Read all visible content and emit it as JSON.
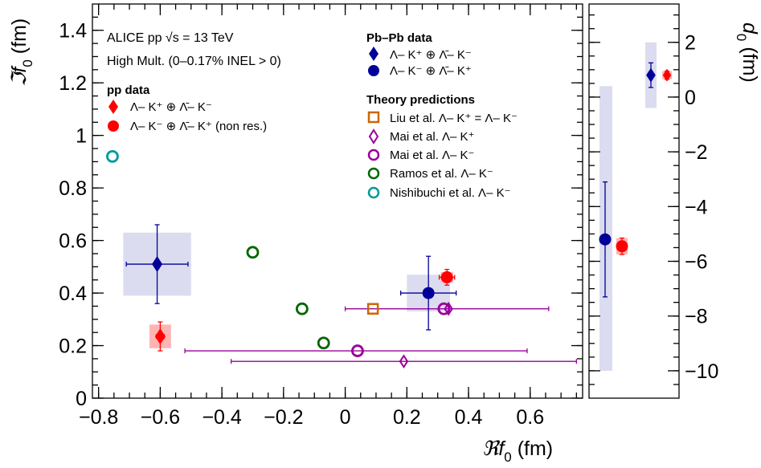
{
  "chart_data": [
    {
      "type": "scatter",
      "panel": "left",
      "xlabel": "ℜf0 (fm)",
      "ylabel": "ℑf0 (fm)",
      "xlim": [
        -0.82,
        0.77
      ],
      "ylim": [
        0,
        1.5
      ],
      "xticks": [
        -0.8,
        -0.6,
        -0.4,
        -0.2,
        0,
        0.2,
        0.4,
        0.6
      ],
      "xtick_labels": [
        "−0.8",
        "−0.6",
        "−0.4",
        "−0.2",
        "0",
        "0.2",
        "0.4",
        "0.6"
      ],
      "yticks": [
        0,
        0.2,
        0.4,
        0.6,
        0.8,
        1,
        1.2,
        1.4
      ],
      "ytick_labels": [
        "0",
        "0.2",
        "0.4",
        "0.6",
        "0.8",
        "1",
        "1.2",
        "1.4"
      ],
      "annotations": [
        "ALICE pp √s = 13 TeV",
        "High Mult. (0–0.17% INEL > 0)",
        "pp data",
        "Pb–Pb data",
        "Theory predictions"
      ],
      "series": [
        {
          "name": "Λ– K⁺ ⊕ Λ̄– K⁻ (pp)",
          "marker": "diamond-filled",
          "color": "#ff0000",
          "x": -0.6,
          "y": 0.235,
          "xerr": 0.013,
          "yerr": 0.055,
          "sys_x": 0.035,
          "sys_y": 0.045
        },
        {
          "name": "Λ– K⁻ ⊕ Λ̄– K⁺ (non res.) (pp)",
          "marker": "circle-filled",
          "color": "#ff0000",
          "x": 0.33,
          "y": 0.46,
          "xerr": 0.025,
          "yerr": 0.03,
          "sys_x": 0.02,
          "sys_y": 0.02
        },
        {
          "name": "Λ– K⁺ ⊕ Λ̄– K⁻ (Pb–Pb)",
          "marker": "diamond-filled",
          "color": "#000099",
          "x": -0.61,
          "y": 0.51,
          "xerr": 0.1,
          "yerr": 0.15,
          "sys_x": 0.11,
          "sys_y": 0.12
        },
        {
          "name": "Λ– K⁻ ⊕ Λ̄– K⁺ (Pb–Pb)",
          "marker": "circle-filled",
          "color": "#000099",
          "x": 0.27,
          "y": 0.4,
          "xerr": 0.09,
          "yerr": 0.14,
          "sys_x": 0.07,
          "sys_y": 0.07
        },
        {
          "name": "Liu et al. Λ– K⁺ = Λ– K⁻",
          "marker": "square-open",
          "color": "#cc6600",
          "x": 0.09,
          "y": 0.34
        },
        {
          "name": "Mai et al. Λ– K⁺",
          "marker": "diamond-open",
          "color": "#990099",
          "points": [
            {
              "x": 0.335,
              "y": 0.34,
              "xlo": -0.0,
              "xhi": 0.66
            },
            {
              "x": 0.19,
              "y": 0.14,
              "xlo": -0.37,
              "xhi": 0.75
            }
          ]
        },
        {
          "name": "Mai et al. Λ– K⁻",
          "marker": "circle-open",
          "color": "#990099",
          "points": [
            {
              "x": 0.32,
              "y": 0.34
            },
            {
              "x": 0.04,
              "y": 0.18,
              "xlo": -0.52,
              "xhi": 0.59
            }
          ]
        },
        {
          "name": "Ramos et al. Λ– K⁻",
          "marker": "circle-open",
          "color": "#006600",
          "points": [
            {
              "x": -0.3,
              "y": 0.555
            },
            {
              "x": -0.14,
              "y": 0.34
            },
            {
              "x": -0.07,
              "y": 0.21
            }
          ]
        },
        {
          "name": "Nishibuchi et al. Λ– K⁻",
          "marker": "circle-open",
          "color": "#009999",
          "points": [
            {
              "x": -0.755,
              "y": 0.92
            }
          ]
        }
      ]
    },
    {
      "type": "scatter",
      "panel": "right",
      "ylabel": "d0 (fm)",
      "ylim": [
        -11,
        3.4
      ],
      "yticks": [
        2,
        0,
        -2,
        -4,
        -6,
        -8,
        -10
      ],
      "ytick_labels": [
        "2",
        "0",
        "−2",
        "−4",
        "−6",
        "−8",
        "−10"
      ],
      "series": [
        {
          "name": "Pb–Pb Λ– K⁻ ⊕ Λ̄– K⁺",
          "marker": "circle-filled",
          "color": "#000099",
          "y": -5.2,
          "ylo": -7.3,
          "yhi": -3.1,
          "sys_lo": -10.0,
          "sys_hi": 0.4
        },
        {
          "name": "pp Λ– K⁻ ⊕ Λ̄– K⁺ (non res.)",
          "marker": "circle-filled",
          "color": "#ff0000",
          "y": -5.45,
          "ylo": -5.75,
          "yhi": -5.15
        },
        {
          "name": "Pb–Pb Λ– K⁺ ⊕ Λ̄– K⁻",
          "marker": "diamond-filled",
          "color": "#000099",
          "y": 0.8,
          "ylo": 0.35,
          "yhi": 1.25,
          "sys_lo": -0.4,
          "sys_hi": 2.0
        },
        {
          "name": "pp Λ– K⁺ ⊕ Λ̄– K⁻",
          "marker": "diamond-filled",
          "color": "#ff0000",
          "y": 0.8,
          "ylo": 0.65,
          "yhi": 0.95
        }
      ]
    }
  ],
  "legend": {
    "pp_header": "pp data",
    "pp_item1": "Λ– K⁺ ⊕ Λ̄– K⁻",
    "pp_item2": "Λ– K⁻ ⊕ Λ̄– K⁺ (non res.)",
    "pbpb_header": "Pb–Pb data",
    "pbpb_item1": "Λ– K⁺ ⊕ Λ̄– K⁻",
    "pbpb_item2": "Λ– K⁻ ⊕ Λ̄– K⁺",
    "theory_header": "Theory predictions",
    "theory_item1": "Liu et al. Λ– K⁺ = Λ– K⁻",
    "theory_item2": "Mai et al. Λ– K⁺",
    "theory_item3": "Mai et al. Λ– K⁻",
    "theory_item4": "Ramos et al. Λ– K⁻",
    "theory_item5": "Nishibuchi et al. Λ– K⁻"
  },
  "header": {
    "line1": "ALICE pp √s = 13 TeV",
    "line2": "High Mult. (0–0.17% INEL > 0)"
  },
  "axes": {
    "xlabel": "ℜf",
    "xlabel_sub": "0",
    "xlabel_unit": " (fm)",
    "ylabel": "ℑf",
    "ylabel_sub": "0",
    "ylabel_unit": " (fm)",
    "rlabel": "d",
    "rlabel_sub": "0",
    "rlabel_unit": " (fm)"
  },
  "colors": {
    "red": "#ff0000",
    "navy": "#000099",
    "orange": "#cc6600",
    "purple": "#990099",
    "green": "#006600",
    "teal": "#009999",
    "syst_blue": "#dcdcf0",
    "syst_red": "#ffb4b4"
  }
}
